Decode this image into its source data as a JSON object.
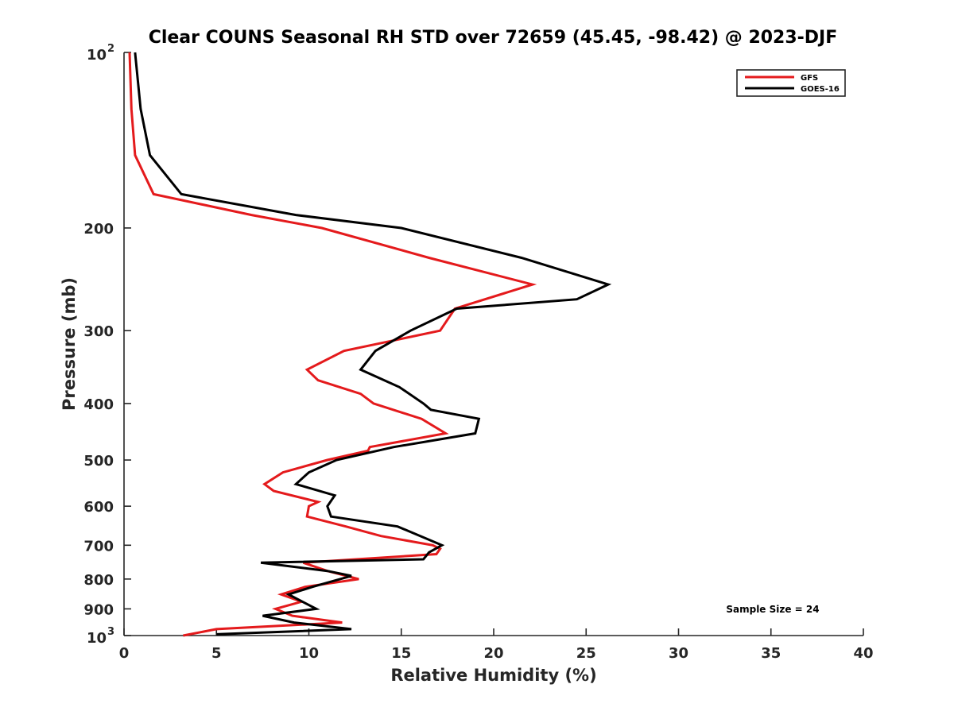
{
  "chart_data": {
    "type": "line",
    "title": "Clear COUNS Seasonal RH STD over 72659 (45.45, -98.42) @ 2023-DJF",
    "xlabel": "Relative Humidity (%)",
    "ylabel": "Pressure (mb)",
    "xlim": [
      0,
      40
    ],
    "ylim": [
      100,
      1000
    ],
    "yscale": "log",
    "yreversed": true,
    "xticks": [
      "0",
      "5",
      "10",
      "15",
      "20",
      "25",
      "30",
      "35",
      "40"
    ],
    "yticks": [
      {
        "value": 100,
        "label": "10",
        "sup": "2"
      },
      {
        "value": 200,
        "label": "200"
      },
      {
        "value": 300,
        "label": "300"
      },
      {
        "value": 400,
        "label": "400"
      },
      {
        "value": 500,
        "label": "500"
      },
      {
        "value": 600,
        "label": "600"
      },
      {
        "value": 700,
        "label": "700"
      },
      {
        "value": 800,
        "label": "800"
      },
      {
        "value": 900,
        "label": "900"
      },
      {
        "value": 1000,
        "label": "10",
        "sup": "3"
      }
    ],
    "legend_position": "top-right",
    "annotation": "Sample Size = 24",
    "series": [
      {
        "name": "GFS",
        "color": "#e41a1c",
        "points": [
          [
            0.3,
            100
          ],
          [
            0.4,
            125
          ],
          [
            0.6,
            150
          ],
          [
            1.6,
            175
          ],
          [
            6.9,
            190
          ],
          [
            10.7,
            200
          ],
          [
            16.5,
            225
          ],
          [
            22.1,
            250
          ],
          [
            17.9,
            275
          ],
          [
            17.1,
            300
          ],
          [
            11.9,
            325
          ],
          [
            9.9,
            350
          ],
          [
            10.5,
            365
          ],
          [
            12.8,
            385
          ],
          [
            13.5,
            400
          ],
          [
            16.1,
            425
          ],
          [
            17.4,
            450
          ],
          [
            13.3,
            475
          ],
          [
            13.2,
            482
          ],
          [
            11.0,
            500
          ],
          [
            8.6,
            525
          ],
          [
            7.6,
            550
          ],
          [
            8.1,
            565
          ],
          [
            10.5,
            590
          ],
          [
            10.0,
            600
          ],
          [
            9.9,
            625
          ],
          [
            12.0,
            650
          ],
          [
            13.9,
            675
          ],
          [
            16.7,
            700
          ],
          [
            17.1,
            710
          ],
          [
            16.9,
            725
          ],
          [
            9.7,
            750
          ],
          [
            11.0,
            775
          ],
          [
            12.7,
            800
          ],
          [
            9.8,
            825
          ],
          [
            8.5,
            850
          ],
          [
            9.6,
            875
          ],
          [
            8.2,
            900
          ],
          [
            9.1,
            925
          ],
          [
            11.8,
            950
          ],
          [
            5.0,
            975
          ],
          [
            3.2,
            1000
          ]
        ]
      },
      {
        "name": "GOES-16",
        "color": "#000000",
        "points": [
          [
            0.6,
            100
          ],
          [
            0.9,
            125
          ],
          [
            1.4,
            150
          ],
          [
            3.1,
            175
          ],
          [
            9.3,
            190
          ],
          [
            15.0,
            200
          ],
          [
            21.5,
            225
          ],
          [
            26.2,
            250
          ],
          [
            24.5,
            265
          ],
          [
            18.0,
            275
          ],
          [
            15.5,
            300
          ],
          [
            13.6,
            325
          ],
          [
            12.8,
            350
          ],
          [
            14.9,
            375
          ],
          [
            16.2,
            400
          ],
          [
            16.6,
            410
          ],
          [
            19.2,
            425
          ],
          [
            19.0,
            450
          ],
          [
            14.6,
            475
          ],
          [
            11.5,
            500
          ],
          [
            10.0,
            525
          ],
          [
            9.3,
            550
          ],
          [
            11.4,
            575
          ],
          [
            11.0,
            600
          ],
          [
            11.2,
            625
          ],
          [
            14.8,
            650
          ],
          [
            17.2,
            700
          ],
          [
            16.5,
            720
          ],
          [
            16.2,
            740
          ],
          [
            7.4,
            750
          ],
          [
            11.0,
            775
          ],
          [
            12.3,
            790
          ],
          [
            10.2,
            825
          ],
          [
            8.9,
            850
          ],
          [
            10.4,
            900
          ],
          [
            7.5,
            925
          ],
          [
            9.2,
            950
          ],
          [
            12.3,
            975
          ],
          [
            5.0,
            995
          ]
        ]
      }
    ]
  }
}
